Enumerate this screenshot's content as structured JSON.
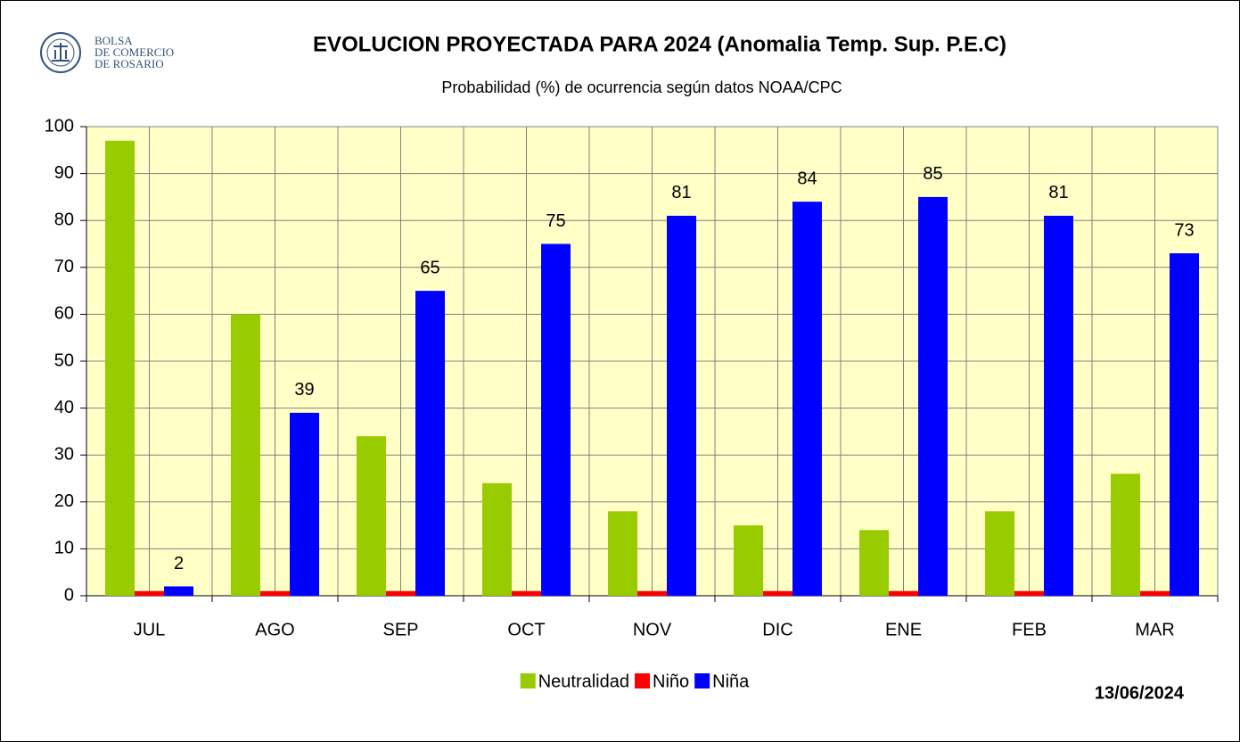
{
  "logo": {
    "lines": [
      "BOLSA",
      "DE COMERCIO",
      "DE ROSARIO"
    ]
  },
  "chart_data": {
    "type": "bar",
    "title": "EVOLUCION PROYECTADA PARA 2024 (Anomalia Temp. Sup. P.E.C)",
    "subtitle": "Probabilidad (%) de ocurrencia según datos NOAA/CPC",
    "date": "13/06/2024",
    "categories": [
      "JUL",
      "AGO",
      "SEP",
      "OCT",
      "NOV",
      "DIC",
      "ENE",
      "FEB",
      "MAR"
    ],
    "series": [
      {
        "name": "Neutralidad",
        "color": "#99cc00",
        "values": [
          97,
          60,
          34,
          24,
          18,
          15,
          14,
          18,
          26
        ],
        "data_labels": false
      },
      {
        "name": "Niño",
        "color": "#ff0000",
        "values": [
          1,
          1,
          1,
          1,
          1,
          1,
          1,
          1,
          1
        ],
        "data_labels": false
      },
      {
        "name": "Niña",
        "color": "#0000ff",
        "values": [
          2,
          39,
          65,
          75,
          81,
          84,
          85,
          81,
          73
        ],
        "data_labels": true
      }
    ],
    "ylim": [
      0,
      100
    ],
    "yticks": [
      0,
      10,
      20,
      30,
      40,
      50,
      60,
      70,
      80,
      90,
      100
    ],
    "grid": true,
    "legend": "bottom",
    "plot_background": "#ffffc6"
  }
}
